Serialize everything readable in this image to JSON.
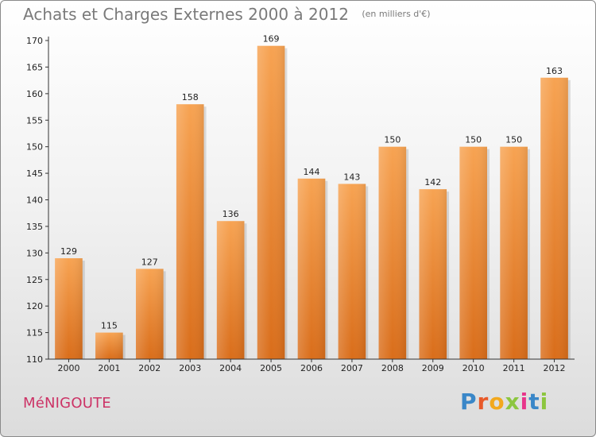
{
  "header": {
    "title": "Achats et Charges Externes 2000 à 2012",
    "unit": "(en milliers d'€)"
  },
  "footer": {
    "commune": "MéNIGOUTE",
    "logo_letters": [
      "P",
      "r",
      "o",
      "x",
      "i",
      "t",
      "i"
    ],
    "logo_colors": [
      "#3a87c8",
      "#e85a2a",
      "#f2a81d",
      "#8cc63f",
      "#e8358a",
      "#3a87c8",
      "#8cc63f"
    ]
  },
  "colors": {
    "bar_top": "#f7a352",
    "bar_bottom": "#d96d1a",
    "axis": "#333333",
    "grid": "#bdbdbd"
  },
  "chart_data": {
    "type": "bar",
    "title": "Achats et Charges Externes 2000 à 2012",
    "xlabel": "",
    "ylabel": "",
    "categories": [
      "2000",
      "2001",
      "2002",
      "2003",
      "2004",
      "2005",
      "2006",
      "2007",
      "2008",
      "2009",
      "2010",
      "2011",
      "2012"
    ],
    "values": [
      129,
      115,
      127,
      158,
      136,
      169,
      144,
      143,
      150,
      142,
      150,
      150,
      163
    ],
    "ylim": [
      110,
      170
    ],
    "yticks": [
      110,
      115,
      120,
      125,
      130,
      135,
      140,
      145,
      150,
      155,
      160,
      165,
      170
    ],
    "grid": false
  }
}
